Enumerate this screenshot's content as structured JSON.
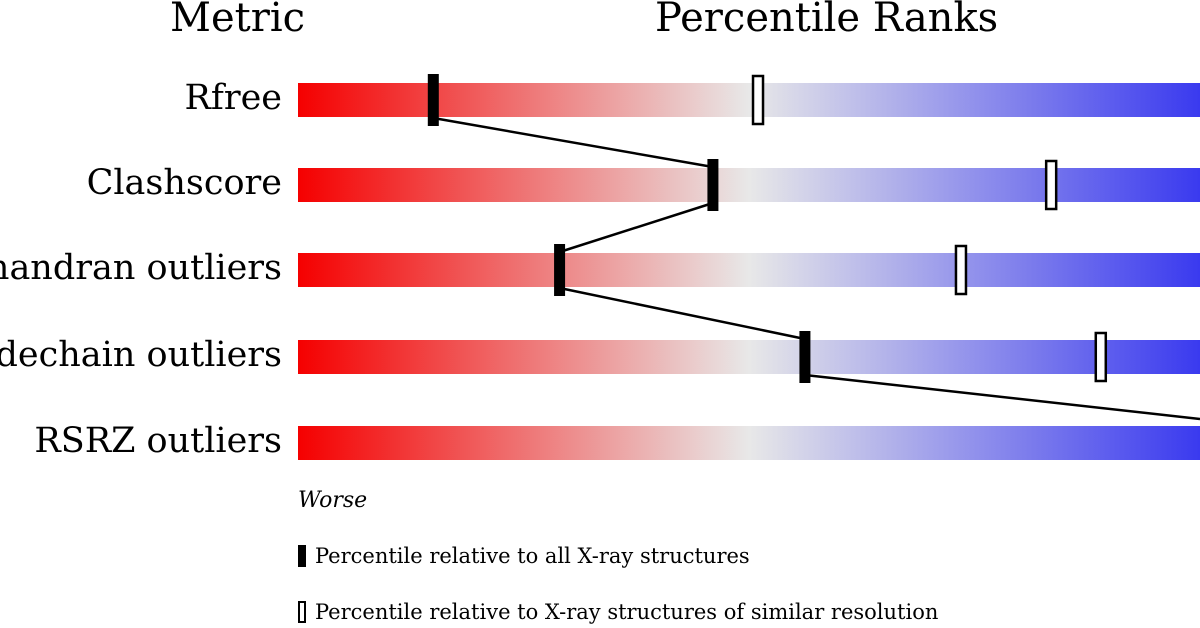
{
  "headers": {
    "metric": "Metric",
    "percentile": "Percentile Ranks"
  },
  "chart_data": {
    "type": "bar",
    "xlim": [
      0,
      100
    ],
    "gradient_colors": {
      "worse": "#f50000",
      "middle": "#e8e8e8",
      "better": "#3a3aef"
    },
    "metrics": [
      {
        "label": "Rfree",
        "all": 15,
        "similar": 51
      },
      {
        "label": "Clashscore",
        "all": 46,
        "similar": 83.5
      },
      {
        "label": "chandran outliers",
        "all": 29,
        "similar": 73.5
      },
      {
        "label": "Sidechain outliers",
        "all": 56.2,
        "similar": 89
      },
      {
        "label": "RSRZ outliers",
        "all": 100,
        "similar": null
      }
    ]
  },
  "legend": {
    "worse": "Worse",
    "all_label": "Percentile relative to all X-ray structures",
    "similar_label": "Percentile relative to X-ray structures of similar resolution"
  }
}
